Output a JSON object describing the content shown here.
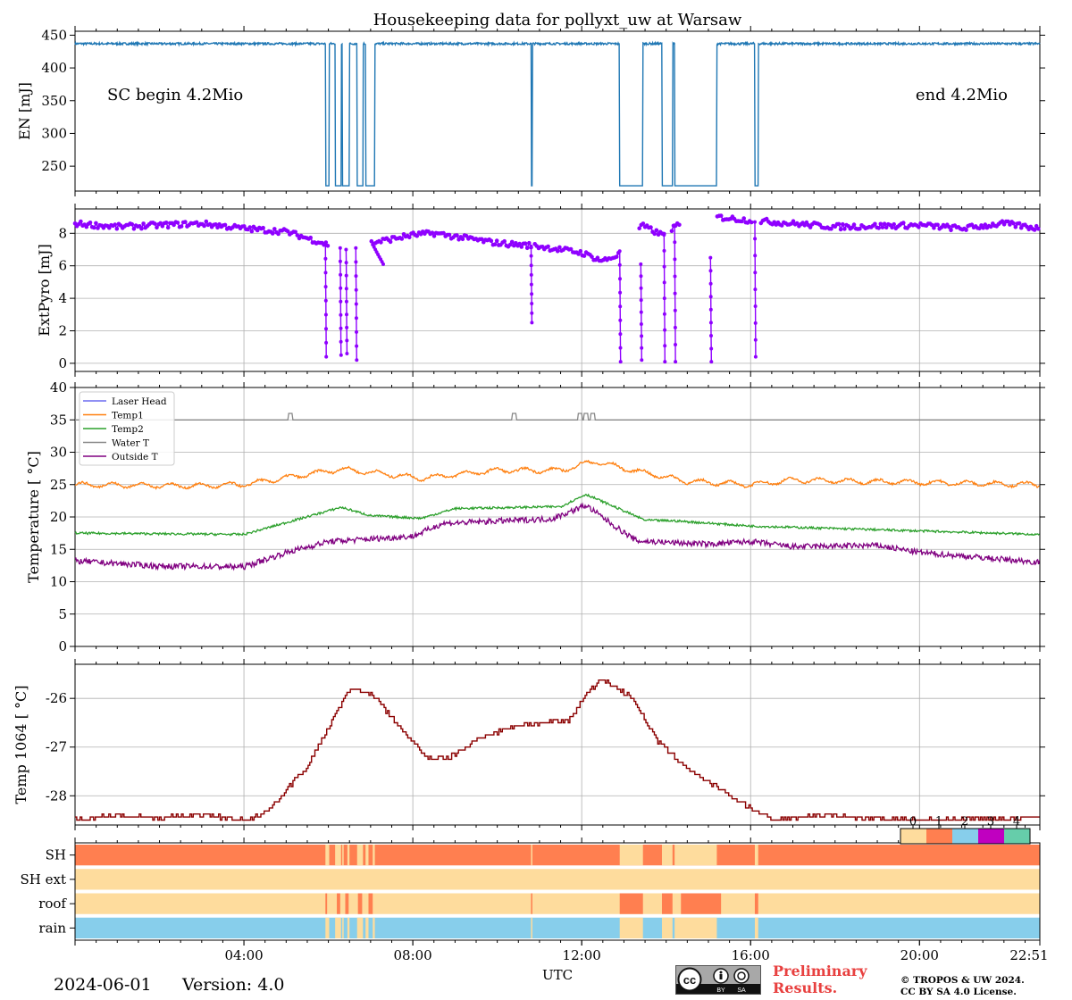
{
  "title": "Housekeeping data for pollyxt_uw at Warsaw",
  "footer": {
    "date": "2024-06-01",
    "version": "Version: 4.0",
    "preliminary_line1": "Preliminary",
    "preliminary_line2": "Results.",
    "copyright_line1": "© TROPOS & UW 2024.",
    "copyright_line2": "CC BY SA 4.0 License.",
    "badge_cc": "cc",
    "badge_by": "BY",
    "badge_sa": "SA"
  },
  "chart_data": [
    {
      "id": "energy",
      "type": "line",
      "ylabel": "EN [mJ]",
      "ylim": [
        212,
        456
      ],
      "yticks": [
        250,
        300,
        350,
        400,
        450
      ],
      "xlim": [
        0,
        22.85
      ],
      "annotations": [
        "SC begin 4.2Mio",
        "end 4.2Mio"
      ],
      "series": [
        {
          "name": "EN",
          "color": "#1f77b4",
          "baseline": 437,
          "low": 220,
          "gaps": [
            [
              5.93,
              6.02
            ],
            [
              6.16,
              6.3
            ],
            [
              6.33,
              6.5
            ],
            [
              6.68,
              6.82
            ],
            [
              6.88,
              7.1
            ],
            [
              10.8,
              10.83
            ],
            [
              12.9,
              13.45
            ],
            [
              13.9,
              14.15
            ],
            [
              14.2,
              15.2
            ],
            [
              16.1,
              16.18
            ]
          ]
        }
      ]
    },
    {
      "id": "extpyro",
      "type": "line",
      "ylabel": "ExtPyro [mJ]",
      "ylim": [
        -0.5,
        9.5
      ],
      "yticks": [
        0,
        2,
        4,
        6,
        8
      ],
      "xlim": [
        0,
        22.85
      ],
      "series": [
        {
          "name": "ExtPyro",
          "color": "#8f00ff",
          "profile": [
            [
              0,
              8.6
            ],
            [
              1,
              8.4
            ],
            [
              2,
              8.5
            ],
            [
              3,
              8.6
            ],
            [
              4,
              8.3
            ],
            [
              5,
              8.1
            ],
            [
              6,
              7.3
            ],
            [
              7,
              7.4
            ],
            [
              8,
              7.9
            ],
            [
              8.5,
              8.0
            ],
            [
              10,
              7.4
            ],
            [
              11,
              7.2
            ],
            [
              12,
              6.8
            ],
            [
              12.5,
              6.3
            ],
            [
              13,
              6.8
            ],
            [
              13.4,
              8.5
            ],
            [
              13.9,
              7.9
            ],
            [
              14.2,
              8.4
            ],
            [
              15.2,
              9.0
            ],
            [
              16,
              8.8
            ],
            [
              18,
              8.4
            ],
            [
              20,
              8.5
            ],
            [
              21,
              8.3
            ],
            [
              22,
              8.6
            ],
            [
              22.85,
              8.3
            ]
          ],
          "gaps": [
            [
              6.0,
              7.0
            ],
            [
              10.8,
              10.85
            ],
            [
              12.9,
              13.35
            ],
            [
              13.95,
              14.1
            ],
            [
              14.35,
              15.2
            ],
            [
              16.05,
              16.2
            ]
          ],
          "drops": [
            [
              5.93,
              7.3,
              0.4
            ],
            [
              6.28,
              7.1,
              0.5
            ],
            [
              6.42,
              7.0,
              0.6
            ],
            [
              6.65,
              7.1,
              0.2
            ],
            [
              7.05,
              7.3,
              6.1
            ],
            [
              10.8,
              7.2,
              2.5
            ],
            [
              12.9,
              6.9,
              0.1
            ],
            [
              13.4,
              6.1,
              0.2
            ],
            [
              13.95,
              7.9,
              0.1
            ],
            [
              14.2,
              8.5,
              0.1
            ],
            [
              15.05,
              6.5,
              0.1
            ],
            [
              16.1,
              8.7,
              0.4
            ]
          ]
        }
      ]
    },
    {
      "id": "temperature",
      "type": "line",
      "ylabel": "Temperature [$^\\circ C$]",
      "ylim": [
        0,
        40
      ],
      "yticks": [
        0,
        5,
        10,
        15,
        20,
        25,
        30,
        35,
        40
      ],
      "xlim": [
        0,
        22.85
      ],
      "legend": "top-left",
      "series": [
        {
          "name": "Laser Head",
          "color": "#6b6bf0",
          "points": []
        },
        {
          "name": "Temp1",
          "color": "#ff7f0e",
          "points": [
            [
              0,
              25
            ],
            [
              3,
              24.8
            ],
            [
              4,
              25
            ],
            [
              6.3,
              27.4
            ],
            [
              8.2,
              26
            ],
            [
              10,
              27.2
            ],
            [
              11.5,
              27.2
            ],
            [
              12.3,
              28.6
            ],
            [
              13,
              27.5
            ],
            [
              14.5,
              25.5
            ],
            [
              16,
              25.0
            ],
            [
              17,
              25.7
            ],
            [
              22.85,
              25
            ]
          ]
        },
        {
          "name": "Temp2",
          "color": "#2ca02c",
          "points": [
            [
              0,
              17.5
            ],
            [
              4,
              17.3
            ],
            [
              6.3,
              21.5
            ],
            [
              7,
              20.2
            ],
            [
              8.2,
              19.8
            ],
            [
              9,
              21.3
            ],
            [
              11.5,
              21.6
            ],
            [
              12.1,
              23.5
            ],
            [
              13.5,
              19.5
            ],
            [
              14.2,
              19.4
            ],
            [
              16,
              18.6
            ],
            [
              22.85,
              17.3
            ]
          ]
        },
        {
          "name": "Water T",
          "color": "#888888",
          "baseline": 35,
          "spikes": [
            5.1,
            10.4,
            11.95,
            12.1,
            12.25
          ]
        },
        {
          "name": "Outside T",
          "color": "#800080",
          "points": [
            [
              0,
              13.2
            ],
            [
              2,
              12.4
            ],
            [
              4,
              12.3
            ],
            [
              5,
              14.5
            ],
            [
              6,
              16.2
            ],
            [
              8,
              17
            ],
            [
              8.7,
              19
            ],
            [
              10.5,
              19.5
            ],
            [
              11.3,
              19.7
            ],
            [
              12.1,
              21.8
            ],
            [
              12.8,
              18.5
            ],
            [
              13.3,
              16.3
            ],
            [
              15,
              15.8
            ],
            [
              16,
              16.2
            ],
            [
              17,
              15.4
            ],
            [
              19,
              15.6
            ],
            [
              20,
              14.5
            ],
            [
              22.85,
              13.0
            ]
          ]
        }
      ]
    },
    {
      "id": "temp1064",
      "type": "line",
      "ylabel": "Temp 1064 [$^\\circ C$]",
      "ylim": [
        -28.6,
        -25.3
      ],
      "yticks": [
        -26,
        -27,
        -28
      ],
      "xlim": [
        0,
        22.85
      ],
      "series": [
        {
          "name": "Temp 1064",
          "color": "#8b0000",
          "points": [
            [
              0,
              -28.5
            ],
            [
              1,
              -28.4
            ],
            [
              2,
              -28.45
            ],
            [
              3,
              -28.4
            ],
            [
              4,
              -28.5
            ],
            [
              4.5,
              -28.35
            ],
            [
              5.5,
              -27.4
            ],
            [
              6.5,
              -25.8
            ],
            [
              7.0,
              -25.9
            ],
            [
              7.5,
              -26.4
            ],
            [
              8.0,
              -26.9
            ],
            [
              8.3,
              -27.2
            ],
            [
              8.8,
              -27.25
            ],
            [
              9.6,
              -26.8
            ],
            [
              10.5,
              -26.55
            ],
            [
              11.7,
              -26.45
            ],
            [
              12.2,
              -25.8
            ],
            [
              12.5,
              -25.6
            ],
            [
              13.2,
              -26.0
            ],
            [
              13.8,
              -26.9
            ],
            [
              14.6,
              -27.5
            ],
            [
              15.5,
              -28.0
            ],
            [
              16.5,
              -28.5
            ],
            [
              17.5,
              -28.4
            ],
            [
              20,
              -28.5
            ],
            [
              22.85,
              -28.45
            ]
          ]
        }
      ]
    },
    {
      "id": "status",
      "type": "heatmap",
      "rows": [
        "SH",
        "SH ext",
        "roof",
        "rain"
      ],
      "colorbar_ticks": [
        "0",
        "1",
        "2",
        "3",
        "4"
      ],
      "colors": [
        "#fedc9d",
        "#ff7f50",
        "#87ceeb",
        "#c000c0",
        "#66cdaa"
      ],
      "xlim": [
        0,
        22.85
      ],
      "xlabel": "UTC",
      "xticklabels": [
        "04:00",
        "08:00",
        "12:00",
        "16:00",
        "20:00",
        "22:51"
      ],
      "xtickvalues": [
        4,
        8,
        12,
        16,
        20,
        22.85
      ],
      "segments": {
        "SH": {
          "default": 1,
          "others": [
            [
              5.93,
              6.02,
              0
            ],
            [
              6.16,
              6.3,
              0
            ],
            [
              6.33,
              6.35,
              0
            ],
            [
              6.45,
              6.5,
              0
            ],
            [
              6.68,
              6.82,
              0
            ],
            [
              6.88,
              6.95,
              0
            ],
            [
              7.05,
              7.1,
              0
            ],
            [
              10.8,
              10.83,
              0
            ],
            [
              12.9,
              13.45,
              0
            ],
            [
              13.9,
              14.15,
              0
            ],
            [
              14.2,
              15.2,
              0
            ],
            [
              16.1,
              16.18,
              0
            ]
          ]
        },
        "SH ext": {
          "default": 0,
          "others": []
        },
        "roof": {
          "default": 0,
          "others": [
            [
              5.93,
              5.97,
              1
            ],
            [
              6.2,
              6.28,
              1
            ],
            [
              6.4,
              6.48,
              1
            ],
            [
              6.7,
              6.8,
              1
            ],
            [
              6.95,
              7.05,
              1
            ],
            [
              10.8,
              10.83,
              1
            ],
            [
              12.9,
              13.45,
              1
            ],
            [
              13.9,
              14.15,
              1
            ],
            [
              14.35,
              15.3,
              1
            ],
            [
              16.1,
              16.18,
              1
            ]
          ]
        },
        "rain": {
          "default": 2,
          "others": [
            [
              5.93,
              6.02,
              0
            ],
            [
              6.16,
              6.3,
              0
            ],
            [
              6.33,
              6.35,
              0
            ],
            [
              6.45,
              6.5,
              0
            ],
            [
              6.68,
              6.82,
              0
            ],
            [
              6.88,
              6.95,
              0
            ],
            [
              7.05,
              7.1,
              0
            ],
            [
              10.8,
              10.83,
              0
            ],
            [
              12.9,
              13.45,
              0
            ],
            [
              13.9,
              14.15,
              0
            ],
            [
              14.2,
              15.2,
              0
            ],
            [
              16.1,
              16.18,
              0
            ]
          ]
        }
      }
    }
  ]
}
